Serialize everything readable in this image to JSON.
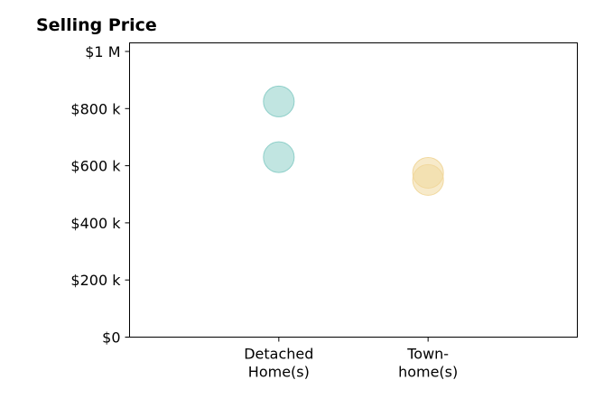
{
  "chart_data": {
    "type": "scatter",
    "title": "Selling Price",
    "xlabel": "",
    "ylabel": "",
    "ylim": [
      0,
      1030000
    ],
    "yticks": [
      0,
      200000,
      400000,
      600000,
      800000,
      1000000
    ],
    "ytick_labels": [
      "$0",
      "$200 k",
      "$400 k",
      "$600 k",
      "$800 k",
      "$1 M"
    ],
    "xlim": [
      -1,
      2
    ],
    "categories": [
      {
        "lines": [
          "Detached",
          "Home(s)"
        ],
        "color": "#8ecfc9"
      },
      {
        "lines": [
          "Town-",
          "home(s)"
        ],
        "color": "#f1d89e"
      }
    ],
    "points": [
      {
        "category": 0,
        "y": 825000
      },
      {
        "category": 0,
        "y": 630000
      },
      {
        "category": 1,
        "y": 575000
      },
      {
        "category": 1,
        "y": 550000
      }
    ],
    "grid": false,
    "legend": "none"
  }
}
